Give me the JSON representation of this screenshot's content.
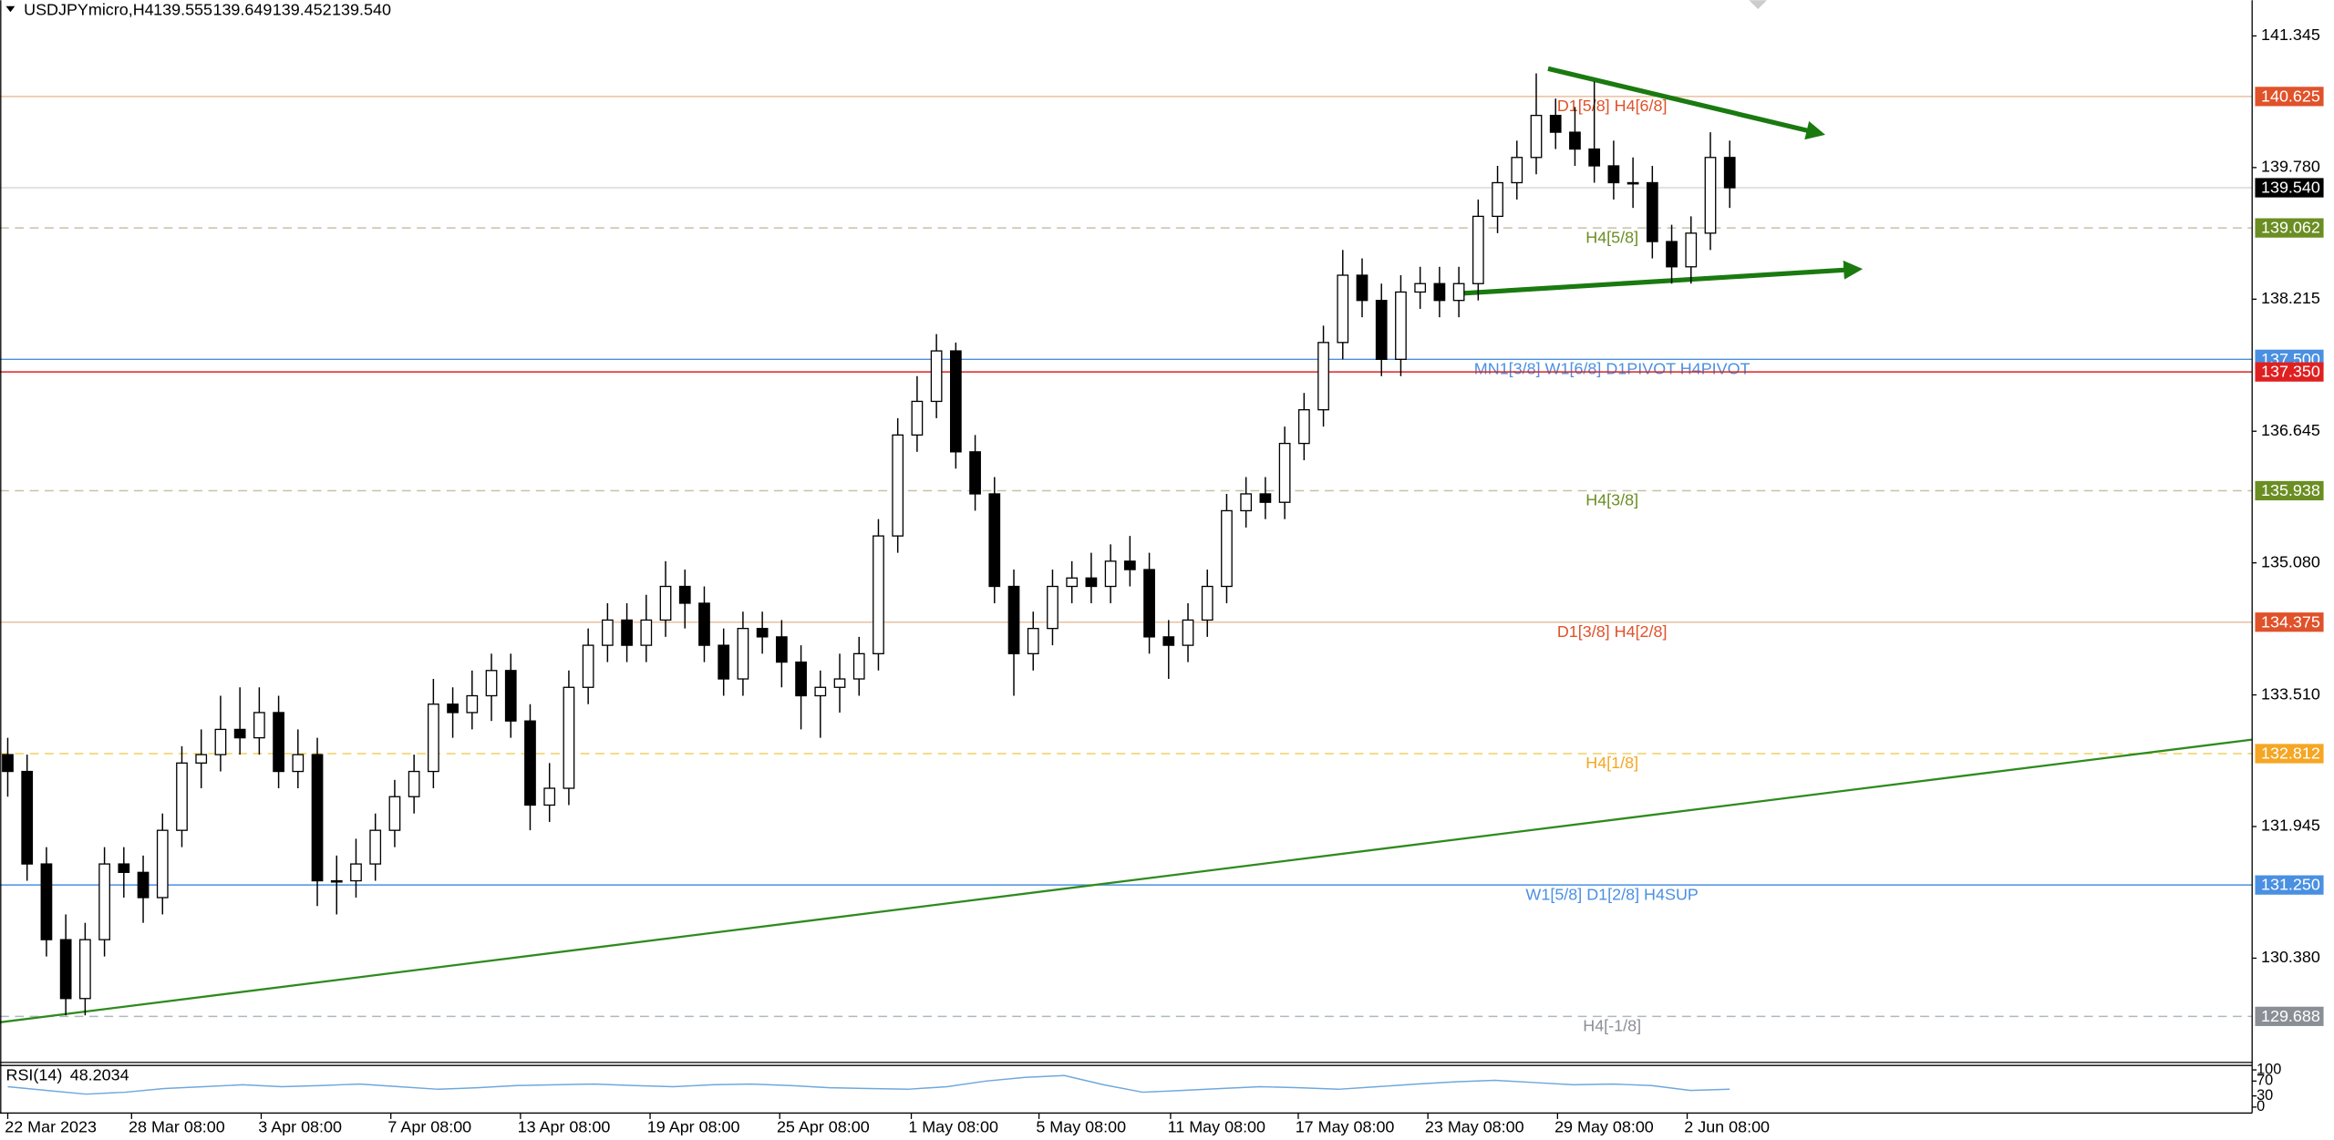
{
  "chart_data": {
    "type": "candlestick",
    "symbol": "USDJPYmicro,H4",
    "ohlc": [
      139.555,
      139.649,
      139.452,
      {
        "value": 139.54,
        "label": "139.540"
      }
    ],
    "up_color": "#ffffff",
    "down_color": "#000000",
    "ylim": [
      129.14,
      141.77
    ],
    "yticks": [
      141.345,
      {
        "value": 139.78,
        "label": "139.780"
      },
      138.215,
      136.645,
      {
        "value": 135.08,
        "label": "135.080"
      },
      {
        "value": 133.51,
        "label": "133.510"
      },
      131.945,
      {
        "value": 130.38,
        "label": "130.380"
      }
    ],
    "xlim": [
      -0.4,
      116
    ],
    "xticks": [
      {
        "value": 0,
        "label": "22 Mar 2023"
      },
      {
        "value": 6.4,
        "label": "28 Mar 08:00"
      },
      {
        "value": 13.1,
        "label": "3 Apr 08:00"
      },
      {
        "value": 19.8,
        "label": "7 Apr 08:00"
      },
      {
        "value": 26.5,
        "label": "13 Apr 08:00"
      },
      {
        "value": 33.2,
        "label": "19 Apr 08:00"
      },
      {
        "value": 39.9,
        "label": "25 Apr 08:00"
      },
      {
        "value": 46.7,
        "label": "1 May 08:00"
      },
      {
        "value": 53.3,
        "label": "5 May 08:00"
      },
      {
        "value": 60.1,
        "label": "11 May 08:00"
      },
      {
        "value": 66.7,
        "label": "17 May 08:00"
      },
      {
        "value": 73.4,
        "label": "23 May 08:00"
      },
      {
        "value": 80.1,
        "label": "29 May 08:00"
      },
      {
        "value": 86.8,
        "label": "2 Jun 08:00"
      }
    ],
    "candles": [
      [
        132.8,
        133.0,
        132.3,
        132.6
      ],
      [
        132.6,
        132.8,
        131.3,
        131.5
      ],
      [
        131.5,
        131.7,
        130.4,
        130.6
      ],
      [
        130.6,
        130.9,
        129.7,
        129.9
      ],
      [
        129.9,
        130.8,
        129.7,
        130.6
      ],
      [
        130.6,
        131.7,
        130.4,
        131.5
      ],
      [
        131.5,
        131.7,
        131.1,
        131.4
      ],
      [
        131.4,
        131.6,
        130.8,
        131.1
      ],
      [
        131.1,
        132.1,
        130.9,
        131.9
      ],
      [
        131.9,
        132.9,
        131.7,
        132.7
      ],
      [
        132.7,
        133.1,
        132.4,
        132.8
      ],
      [
        132.8,
        133.5,
        132.6,
        133.1
      ],
      [
        133.1,
        133.6,
        132.8,
        133.0
      ],
      [
        133.0,
        133.6,
        132.8,
        133.3
      ],
      [
        133.3,
        133.5,
        132.4,
        132.6
      ],
      [
        132.6,
        133.1,
        132.4,
        132.8
      ],
      [
        132.8,
        133.0,
        131.0,
        131.3
      ],
      [
        131.3,
        131.6,
        130.9,
        131.3
      ],
      [
        131.3,
        131.8,
        131.1,
        131.5
      ],
      [
        131.5,
        132.1,
        131.3,
        131.9
      ],
      [
        131.9,
        132.5,
        131.7,
        132.3
      ],
      [
        132.3,
        132.8,
        132.1,
        132.6
      ],
      [
        132.6,
        133.7,
        132.4,
        133.4
      ],
      [
        133.4,
        133.6,
        133.0,
        133.3
      ],
      [
        133.3,
        133.8,
        133.1,
        133.5
      ],
      [
        133.5,
        134.0,
        133.2,
        133.8
      ],
      [
        133.8,
        134.0,
        133.0,
        133.2
      ],
      [
        133.2,
        133.4,
        131.9,
        132.2
      ],
      [
        132.2,
        132.7,
        132.0,
        132.4
      ],
      [
        132.4,
        133.8,
        132.2,
        133.6
      ],
      [
        133.6,
        134.3,
        133.4,
        134.1
      ],
      [
        134.1,
        134.6,
        133.9,
        134.4
      ],
      [
        134.4,
        134.6,
        133.9,
        134.1
      ],
      [
        134.1,
        134.7,
        133.9,
        134.4
      ],
      [
        134.4,
        135.1,
        134.2,
        134.8
      ],
      [
        134.8,
        135.0,
        134.3,
        134.6
      ],
      [
        134.6,
        134.8,
        133.9,
        134.1
      ],
      [
        134.1,
        134.3,
        133.5,
        133.7
      ],
      [
        133.7,
        134.5,
        133.5,
        134.3
      ],
      [
        134.3,
        134.5,
        134.0,
        134.2
      ],
      [
        134.2,
        134.4,
        133.6,
        133.9
      ],
      [
        133.9,
        134.1,
        133.1,
        133.5
      ],
      [
        133.5,
        133.8,
        133.0,
        133.6
      ],
      [
        133.6,
        134.0,
        133.3,
        133.7
      ],
      [
        133.7,
        134.2,
        133.5,
        134.0
      ],
      [
        134.0,
        135.6,
        133.8,
        135.4
      ],
      [
        135.4,
        136.8,
        135.2,
        136.6
      ],
      [
        136.6,
        137.3,
        136.4,
        137.0
      ],
      [
        137.0,
        137.8,
        136.8,
        137.6
      ],
      [
        137.6,
        137.7,
        136.2,
        136.4
      ],
      [
        136.4,
        136.6,
        135.7,
        135.9
      ],
      [
        135.9,
        136.1,
        134.6,
        134.8
      ],
      [
        134.8,
        135.0,
        133.5,
        134.0
      ],
      [
        134.0,
        134.5,
        133.8,
        134.3
      ],
      [
        134.3,
        135.0,
        134.1,
        134.8
      ],
      [
        134.8,
        135.1,
        134.6,
        134.9
      ],
      [
        134.9,
        135.2,
        134.6,
        134.8
      ],
      [
        134.8,
        135.3,
        134.6,
        135.1
      ],
      [
        135.1,
        135.4,
        134.8,
        135.0
      ],
      [
        135.0,
        135.2,
        134.0,
        134.2
      ],
      [
        134.2,
        134.4,
        133.7,
        134.1
      ],
      [
        134.1,
        134.6,
        133.9,
        134.4
      ],
      [
        134.4,
        135.0,
        134.2,
        134.8
      ],
      [
        134.8,
        135.9,
        134.6,
        135.7
      ],
      [
        135.7,
        136.1,
        135.5,
        135.9
      ],
      [
        135.9,
        136.1,
        135.6,
        135.8
      ],
      [
        135.8,
        136.7,
        135.6,
        136.5
      ],
      [
        136.5,
        137.1,
        136.3,
        136.9
      ],
      [
        136.9,
        137.9,
        136.7,
        137.7
      ],
      [
        137.7,
        138.8,
        137.5,
        138.5
      ],
      [
        138.5,
        138.7,
        138.0,
        138.2
      ],
      [
        138.2,
        138.4,
        137.3,
        137.5
      ],
      [
        137.5,
        138.5,
        137.3,
        138.3
      ],
      [
        138.3,
        138.6,
        138.1,
        138.4
      ],
      [
        138.4,
        138.6,
        138.0,
        138.2
      ],
      [
        138.2,
        138.6,
        138.0,
        138.4
      ],
      [
        138.4,
        139.4,
        138.2,
        139.2
      ],
      [
        139.2,
        139.8,
        139.0,
        139.6
      ],
      [
        139.6,
        140.1,
        139.4,
        139.9
      ],
      [
        139.9,
        140.9,
        139.7,
        140.4
      ],
      [
        140.4,
        140.6,
        140.0,
        140.2
      ],
      [
        140.2,
        140.5,
        139.8,
        140.0
      ],
      [
        140.0,
        140.8,
        139.6,
        139.8
      ],
      [
        139.8,
        140.1,
        139.4,
        139.6
      ],
      [
        139.6,
        139.9,
        139.3,
        139.6
      ],
      [
        139.6,
        139.8,
        138.7,
        138.9
      ],
      [
        138.9,
        139.1,
        138.4,
        138.6
      ],
      [
        138.6,
        139.2,
        138.4,
        139.0
      ],
      [
        139.0,
        140.2,
        138.8,
        139.9
      ],
      [
        139.9,
        140.1,
        139.3,
        139.54
      ]
    ],
    "levels": [
      {
        "price": 140.625,
        "name": "D1[5/8] H4[6/8]",
        "color": "#e0522a",
        "line_color": "#e8c0a0",
        "dashed": false
      },
      {
        "price": {
          "value": 139.54,
          "label": "139.540"
        },
        "color": "#000000",
        "line_color": "#d8d8d8",
        "dashed": false
      },
      {
        "price": 139.062,
        "name": "H4[5/8]",
        "color": "#6b8e23",
        "line_color": "#c8c0a8",
        "dashed": true
      },
      {
        "price": {
          "value": 137.5,
          "label": "137.500"
        },
        "name": "MN1[3/8] W1[6/8] D1PIVOT H4PIVOT",
        "color": "#4a90e2",
        "line_color": "#4a90e2",
        "dashed": false
      },
      {
        "price": {
          "value": 137.35,
          "label": "137.350"
        },
        "color": "#e02020",
        "line_color": "#e02020",
        "dashed": false
      },
      {
        "price": 135.938,
        "name": "H4[3/8]",
        "color": "#6b8e23",
        "line_color": "#c8c0a8",
        "dashed": true
      },
      {
        "price": 134.375,
        "name": "D1[3/8] H4[2/8]",
        "color": "#e0522a",
        "line_color": "#e8c0a0",
        "dashed": false
      },
      {
        "price": 132.812,
        "name": "H4[1/8]",
        "color": "#f5a623",
        "line_color": "#f0d060",
        "dashed": true
      },
      {
        "price": {
          "value": 131.25,
          "label": "131.250"
        },
        "name": "W1[5/8] D1[2/8] H4SUP",
        "color": "#4a90e2",
        "line_color": "#4a90e2",
        "dashed": false
      },
      {
        "price": 129.688,
        "name": "H4[-1/8]",
        "color": "#8a8f96",
        "line_color": "#b0b8c0",
        "dashed": true
      }
    ],
    "rsi": {
      "name": "RSI(14)",
      "last": 48.2034,
      "color": "#6fa8dc",
      "ylim": [
        0,
        100
      ],
      "yticks": [
        0,
        30,
        70,
        100
      ],
      "values": [
        55,
        45,
        35,
        40,
        50,
        55,
        60,
        55,
        58,
        62,
        55,
        48,
        52,
        58,
        60,
        62,
        58,
        55,
        60,
        62,
        58,
        52,
        50,
        48,
        55,
        70,
        80,
        85,
        60,
        40,
        45,
        50,
        55,
        52,
        48,
        55,
        62,
        68,
        72,
        66,
        60,
        62,
        58,
        45,
        48
      ]
    }
  }
}
